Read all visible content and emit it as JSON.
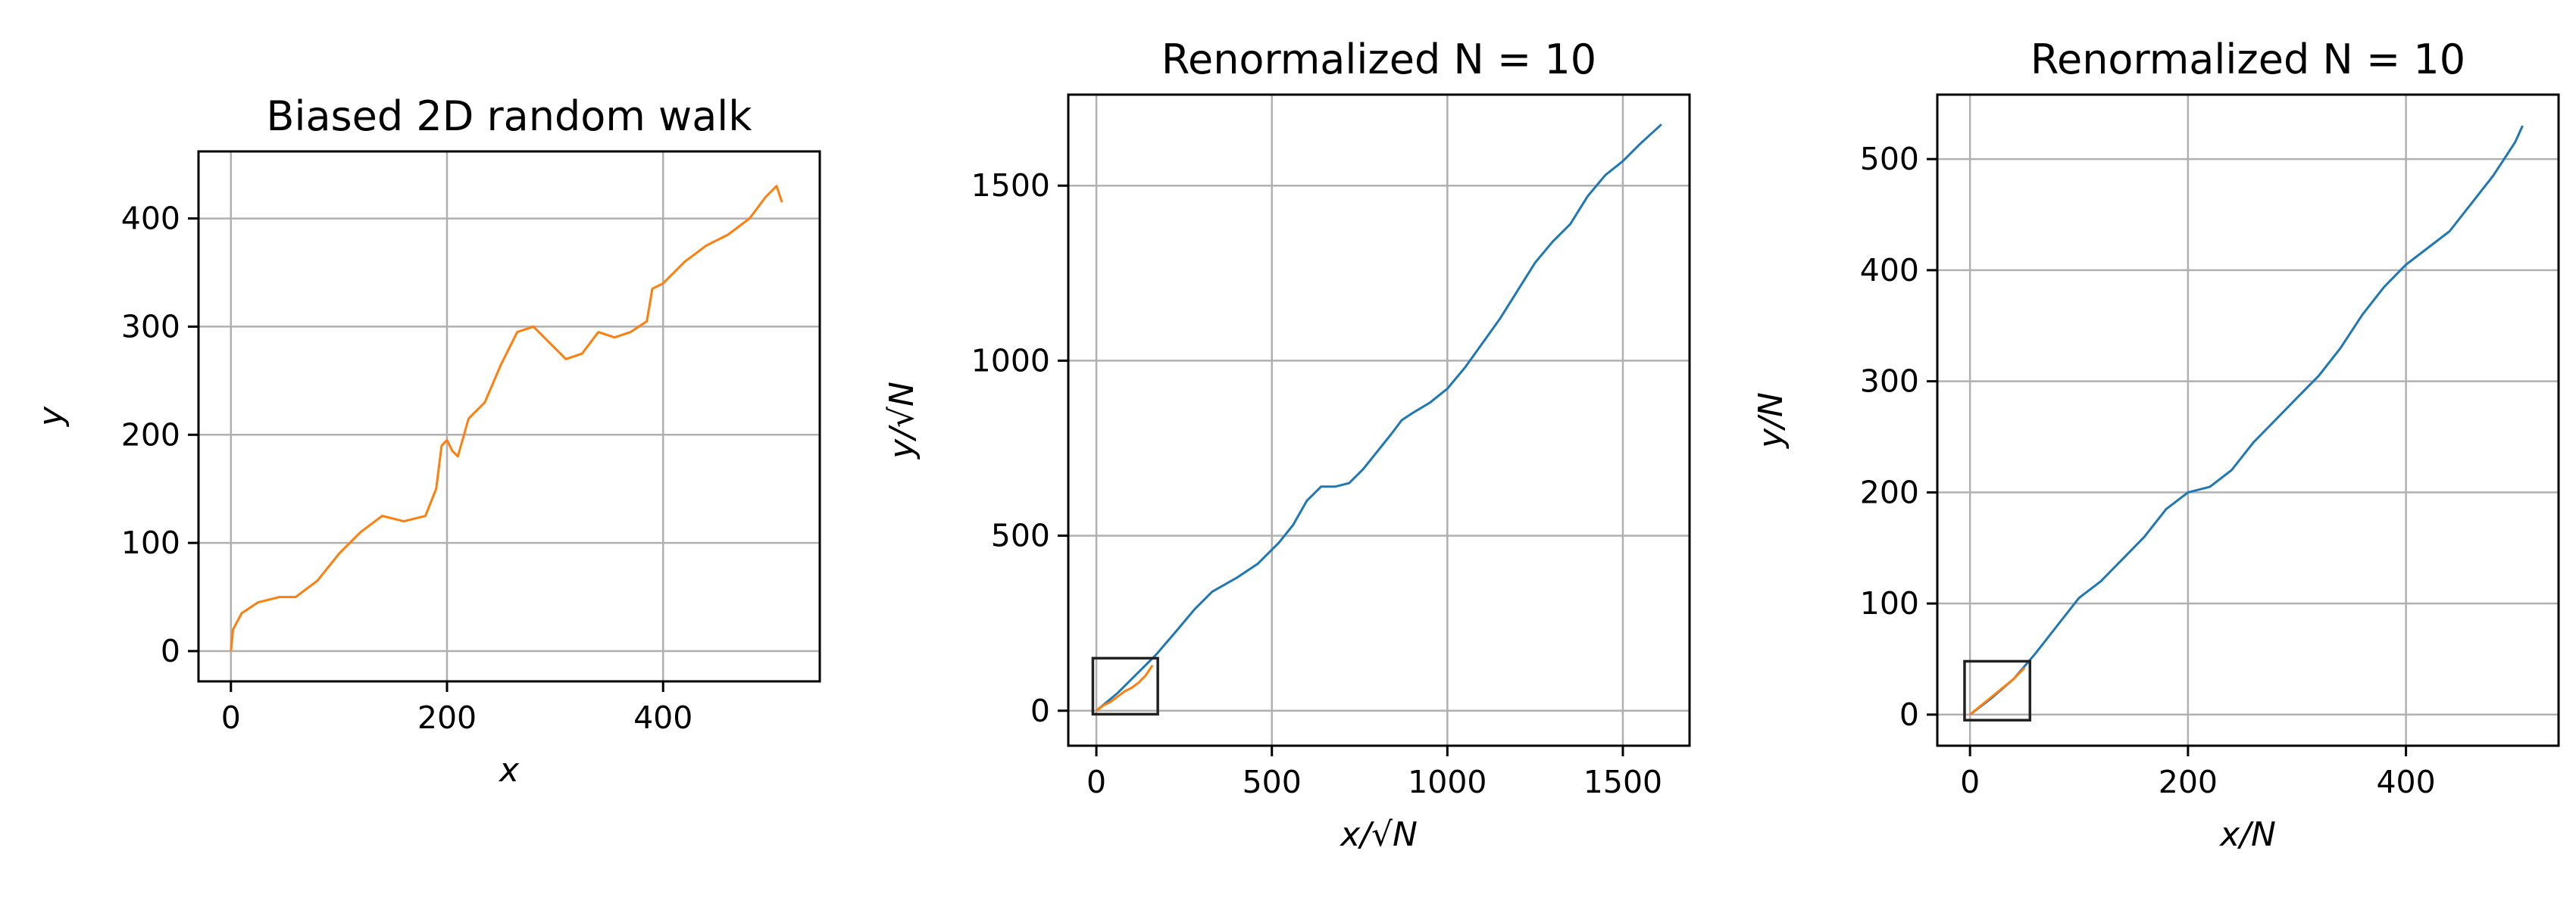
{
  "chart_data": [
    {
      "type": "line",
      "title": "Biased 2D random walk",
      "xlabel": "x",
      "ylabel": "y",
      "xlim": [
        -30,
        545
      ],
      "ylim": [
        -28,
        462
      ],
      "xticks": [
        0,
        200,
        400
      ],
      "yticks": [
        0,
        100,
        200,
        300,
        400
      ],
      "grid": true,
      "series": [
        {
          "color": "#ff7f0e",
          "x": [
            0,
            2,
            10,
            25,
            45,
            60,
            80,
            100,
            120,
            140,
            160,
            180,
            190,
            195,
            200,
            205,
            210,
            220,
            235,
            250,
            265,
            280,
            295,
            310,
            325,
            340,
            355,
            370,
            385,
            390,
            400,
            420,
            440,
            460,
            480,
            495,
            505,
            510
          ],
          "y": [
            0,
            20,
            35,
            45,
            50,
            50,
            65,
            90,
            110,
            125,
            120,
            125,
            150,
            190,
            195,
            185,
            180,
            215,
            230,
            265,
            295,
            300,
            285,
            270,
            275,
            295,
            290,
            295,
            305,
            335,
            340,
            360,
            375,
            385,
            400,
            420,
            430,
            415
          ]
        }
      ]
    },
    {
      "type": "line",
      "title": "Renormalized N = 10",
      "xlabel": "x/√N",
      "ylabel": "y/√N",
      "xlim": [
        -80,
        1690
      ],
      "ylim": [
        -100,
        1760
      ],
      "xticks": [
        0,
        500,
        1000,
        1500
      ],
      "yticks": [
        0,
        500,
        1000,
        1500
      ],
      "grid": true,
      "inset_box": {
        "x": [
          -10,
          175
        ],
        "y": [
          -10,
          150
        ]
      },
      "series": [
        {
          "color": "#1f77b4",
          "x": [
            0,
            60,
            120,
            170,
            230,
            280,
            330,
            400,
            460,
            520,
            560,
            600,
            640,
            680,
            720,
            760,
            800,
            840,
            870,
            900,
            950,
            1000,
            1050,
            1100,
            1150,
            1200,
            1250,
            1300,
            1350,
            1400,
            1450,
            1500,
            1550,
            1610
          ],
          "y": [
            0,
            50,
            110,
            160,
            230,
            290,
            340,
            380,
            420,
            480,
            530,
            600,
            640,
            640,
            650,
            690,
            740,
            790,
            830,
            850,
            880,
            920,
            980,
            1050,
            1120,
            1200,
            1280,
            1340,
            1390,
            1470,
            1530,
            1570,
            1620,
            1675
          ]
        },
        {
          "color": "#ff7f0e",
          "x": [
            0,
            20,
            40,
            60,
            80,
            100,
            120,
            140,
            160
          ],
          "y": [
            0,
            15,
            25,
            40,
            55,
            65,
            80,
            100,
            130
          ]
        }
      ]
    },
    {
      "type": "line",
      "title": "Renormalized N = 10",
      "xlabel": "x/N",
      "ylabel": "y/N",
      "xlim": [
        -30,
        540
      ],
      "ylim": [
        -28,
        558
      ],
      "xticks": [
        0,
        200,
        400
      ],
      "yticks": [
        0,
        100,
        200,
        300,
        400,
        500
      ],
      "grid": true,
      "inset_box": {
        "x": [
          -5,
          55
        ],
        "y": [
          -5,
          48
        ]
      },
      "series": [
        {
          "color": "#1f77b4",
          "x": [
            0,
            20,
            40,
            60,
            80,
            100,
            120,
            140,
            160,
            180,
            200,
            220,
            240,
            260,
            280,
            300,
            320,
            340,
            360,
            380,
            400,
            420,
            440,
            460,
            480,
            500,
            507
          ],
          "y": [
            0,
            15,
            32,
            55,
            80,
            105,
            120,
            140,
            160,
            185,
            200,
            205,
            220,
            245,
            265,
            285,
            305,
            330,
            360,
            385,
            405,
            420,
            435,
            460,
            485,
            515,
            530
          ]
        },
        {
          "color": "#ff7f0e",
          "x": [
            0,
            10,
            20,
            30,
            40,
            50
          ],
          "y": [
            0,
            8,
            16,
            24,
            32,
            42
          ]
        }
      ]
    }
  ]
}
